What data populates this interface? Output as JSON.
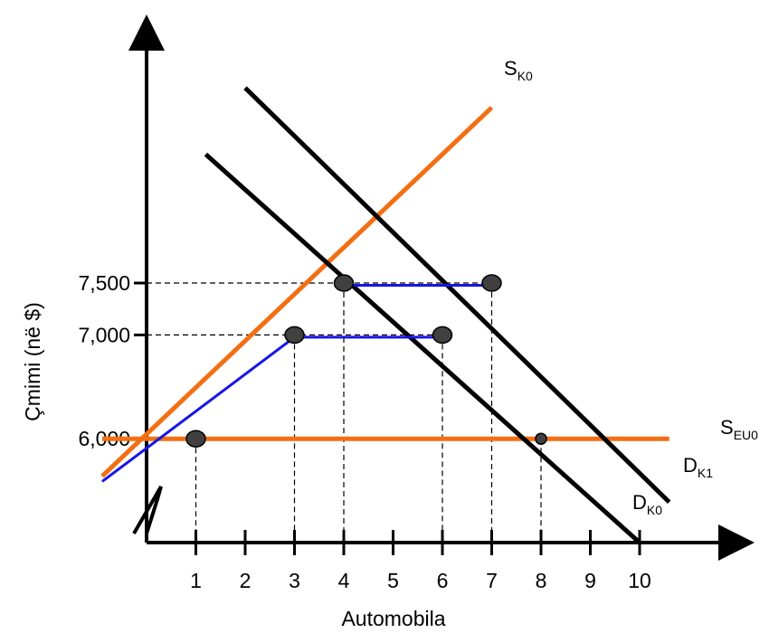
{
  "chart_data": {
    "type": "line",
    "xlabel": "Automobila",
    "ylabel": "Çmimi (në $)",
    "x_ticks": [
      1,
      2,
      3,
      4,
      5,
      6,
      7,
      8,
      9,
      10
    ],
    "y_ticks": [
      {
        "value": 6000,
        "label": "6,000"
      },
      {
        "value": 7000,
        "label": "7,000"
      },
      {
        "value": 7500,
        "label": "7,500"
      }
    ],
    "xlim": [
      0,
      11.5
    ],
    "ylim": [
      5000,
      10000
    ],
    "axis_break": true,
    "grid": false,
    "colors": {
      "supply": "#f36f13",
      "demand": "#000000",
      "import_segment": "#1515e6",
      "point": "#404040"
    },
    "series": [
      {
        "name": "S",
        "sub": "K0",
        "kind": "supply",
        "points": [
          [
            -0.9,
            5640
          ],
          [
            7.0,
            9190
          ]
        ]
      },
      {
        "name": "S",
        "sub": "EU0",
        "kind": "supply",
        "points": [
          [
            -0.9,
            6000
          ],
          [
            10.6,
            6000
          ]
        ]
      },
      {
        "name": "D",
        "sub": "K0",
        "kind": "demand",
        "points": [
          [
            1.2,
            8740
          ],
          [
            10.0,
            5000
          ]
        ]
      },
      {
        "name": "D",
        "sub": "K1",
        "kind": "demand",
        "points": [
          [
            2.0,
            9380
          ],
          [
            10.6,
            5390
          ]
        ]
      }
    ],
    "import_segments": [
      {
        "points": [
          [
            -0.9,
            5610
          ],
          [
            3.0,
            7000
          ],
          [
            6.0,
            7000
          ]
        ]
      },
      {
        "points": [
          [
            4.0,
            7500
          ],
          [
            7.0,
            7500
          ]
        ]
      }
    ],
    "equilibrium_points": [
      {
        "x": 1,
        "y": 6000
      },
      {
        "x": 3,
        "y": 7000
      },
      {
        "x": 6,
        "y": 7000
      },
      {
        "x": 4,
        "y": 7500
      },
      {
        "x": 7,
        "y": 7500
      },
      {
        "x": 8,
        "y": 6000,
        "small": true
      }
    ],
    "guide_lines": [
      {
        "x": 1,
        "y": 6000
      },
      {
        "x": 3,
        "y": 7000
      },
      {
        "x": 4,
        "y": 7500
      },
      {
        "x": 6,
        "y": 7000
      },
      {
        "x": 7,
        "y": 7500
      },
      {
        "x": 8,
        "y": 6000
      }
    ],
    "y_guides": [
      7000,
      7500
    ]
  }
}
